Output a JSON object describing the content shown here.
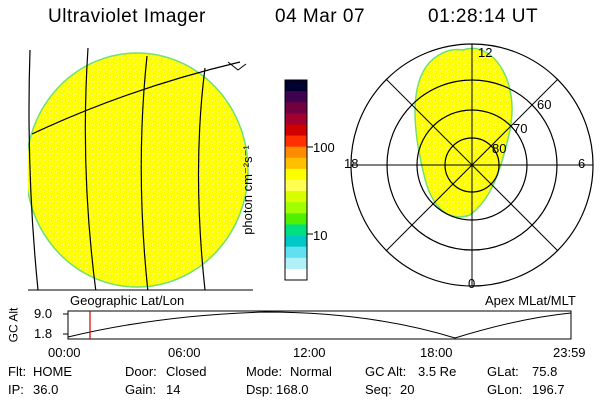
{
  "header": {
    "title": "Ultraviolet Imager",
    "date": "04 Mar 07",
    "time": "01:28:14 UT"
  },
  "colorbar": {
    "unit_label": "photon cm⁻²s⁻¹",
    "ticks": [
      "100",
      "10"
    ],
    "colors": [
      "#000030",
      "#400050",
      "#700040",
      "#a00030",
      "#d00000",
      "#ff3000",
      "#ff8c00",
      "#ffc000",
      "#ffff00",
      "#ffff50",
      "#d8ff00",
      "#a0ff00",
      "#50f000",
      "#00e080",
      "#00c8c8",
      "#60e0f0",
      "#b0f0f8",
      "#ffffff"
    ]
  },
  "left_panel": {
    "caption": "Geographic Lat/Lon",
    "fill_color": "#ffff00",
    "edge_color": "#70e070"
  },
  "right_panel": {
    "caption": "Apex  MLat/MLT",
    "mlt_labels": {
      "top": "12",
      "left": "18",
      "right": "6",
      "bottom": "0"
    },
    "lat_labels": [
      "60",
      "70",
      "80"
    ]
  },
  "altitude_plot": {
    "ylabel": "GC Alt",
    "y_ticks": [
      "9.0",
      "1.8"
    ],
    "x_ticks": [
      "00:00",
      "06:00",
      "12:00",
      "18:00",
      "23:59"
    ],
    "current_marker_color": "#d00000"
  },
  "status": {
    "row1": [
      {
        "label": "Flt:",
        "value": "HOME"
      },
      {
        "label": "Door:",
        "value": "Closed"
      },
      {
        "label": "Mode:",
        "value": "Normal"
      },
      {
        "label": "GC Alt:",
        "value": "3.5 Re"
      },
      {
        "label": "GLat:",
        "value": "75.8"
      }
    ],
    "row2": [
      {
        "label": "IP:",
        "value": "36.0"
      },
      {
        "label": "Gain:",
        "value": "14"
      },
      {
        "label": "Dsp:",
        "value": "168.0"
      },
      {
        "label": "Seq:",
        "value": "20"
      },
      {
        "label": "GLon:",
        "value": "196.7"
      }
    ]
  }
}
